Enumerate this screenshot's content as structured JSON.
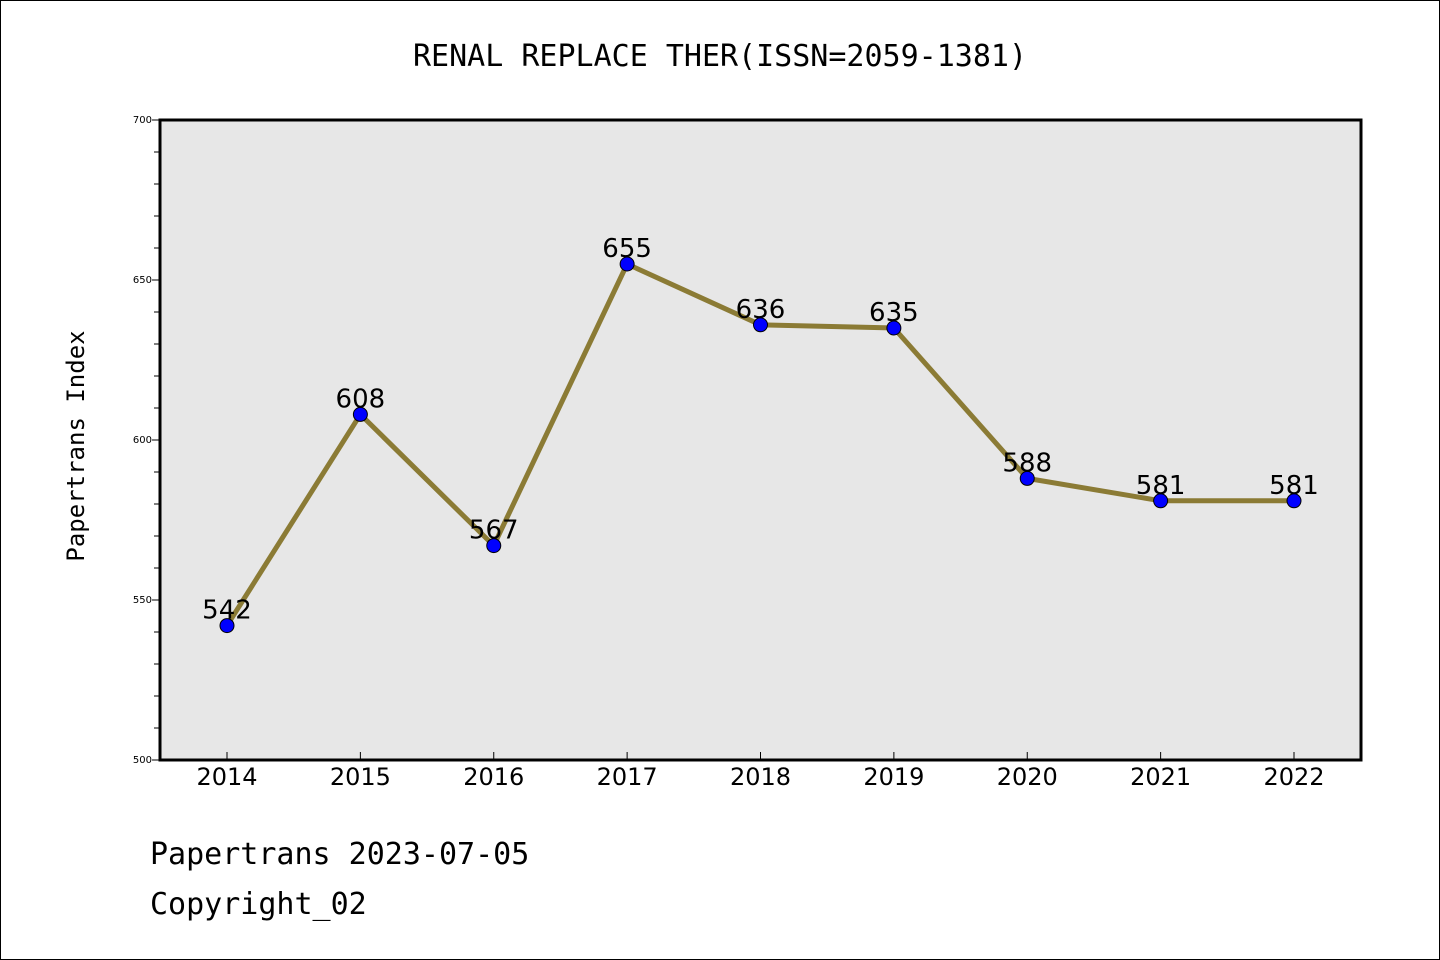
{
  "chart_data": {
    "type": "line",
    "title": "RENAL REPLACE THER(ISSN=2059-1381)",
    "xlabel": "",
    "ylabel": "Papertrans Index",
    "categories": [
      "2014",
      "2015",
      "2016",
      "2017",
      "2018",
      "2019",
      "2020",
      "2021",
      "2022"
    ],
    "series": [
      {
        "values": [
          542,
          608,
          567,
          655,
          636,
          635,
          588,
          581,
          581
        ]
      }
    ],
    "ylim": [
      500,
      700
    ],
    "yticks": [
      500,
      550,
      600,
      650,
      700
    ],
    "grid": false,
    "legend": "none",
    "colors": {
      "line": "#8B7B35",
      "marker": "#0000FF",
      "plot_background": "#E7E7E7"
    }
  },
  "footer": {
    "line1": "Papertrans 2023-07-05",
    "line2": "Copyright_02"
  }
}
